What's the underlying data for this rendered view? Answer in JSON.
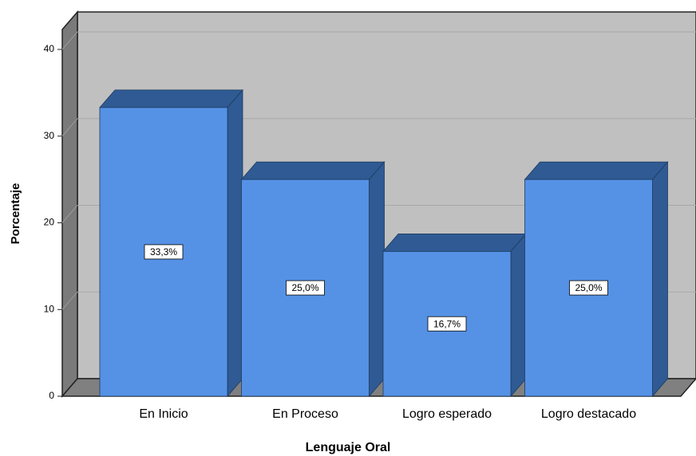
{
  "chart_data": {
    "type": "bar3d",
    "x_label": "Lenguaje Oral",
    "y_label": "Porcentaje",
    "categories": [
      "En Inicio",
      "En Proceso",
      "Logro esperado",
      "Logro destacado"
    ],
    "values": [
      33.3,
      25.0,
      16.7,
      25.0
    ],
    "value_labels": [
      "33,3%",
      "25,0%",
      "16,7%",
      "25,0%"
    ],
    "color": "#5592e5",
    "ylim": [
      0,
      42.3
    ],
    "yticks": [
      0,
      10,
      20,
      30,
      40
    ],
    "grid": true
  }
}
